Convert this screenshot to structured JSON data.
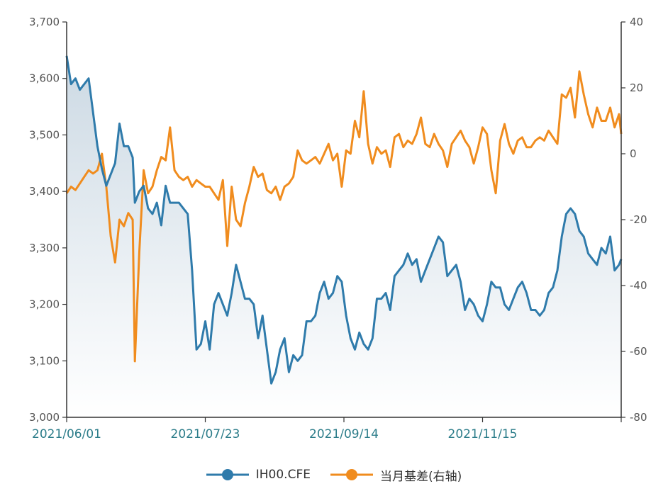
{
  "chart_data": {
    "type": "line",
    "x_ticks": [
      "2021/06/01",
      "2021/07/23",
      "2021/09/14",
      "2021/11/15"
    ],
    "y_left": {
      "min": 3000,
      "max": 3700,
      "ticks": [
        "3,000",
        "3,100",
        "3,200",
        "3,300",
        "3,400",
        "3,500",
        "3,600",
        "3,700"
      ]
    },
    "y_right": {
      "min": -80,
      "max": 40,
      "ticks": [
        "-80",
        "-60",
        "-40",
        "-20",
        "0",
        "20",
        "40"
      ]
    },
    "grid": false,
    "legend_position": "bottom",
    "series": [
      {
        "name": "IH00.CFE",
        "axis": "left",
        "color": "#2f7bab",
        "area": true,
        "points": [
          [
            0,
            3640
          ],
          [
            2,
            3590
          ],
          [
            4,
            3600
          ],
          [
            6,
            3580
          ],
          [
            8,
            3590
          ],
          [
            10,
            3600
          ],
          [
            12,
            3540
          ],
          [
            14,
            3480
          ],
          [
            16,
            3440
          ],
          [
            18,
            3410
          ],
          [
            20,
            3430
          ],
          [
            22,
            3450
          ],
          [
            24,
            3520
          ],
          [
            26,
            3480
          ],
          [
            28,
            3480
          ],
          [
            30,
            3460
          ],
          [
            31,
            3380
          ],
          [
            33,
            3400
          ],
          [
            35,
            3410
          ],
          [
            37,
            3370
          ],
          [
            39,
            3360
          ],
          [
            41,
            3380
          ],
          [
            43,
            3340
          ],
          [
            45,
            3410
          ],
          [
            47,
            3380
          ],
          [
            49,
            3380
          ],
          [
            51,
            3380
          ],
          [
            53,
            3370
          ],
          [
            55,
            3360
          ],
          [
            57,
            3260
          ],
          [
            59,
            3120
          ],
          [
            61,
            3130
          ],
          [
            63,
            3170
          ],
          [
            65,
            3120
          ],
          [
            67,
            3200
          ],
          [
            69,
            3220
          ],
          [
            71,
            3200
          ],
          [
            73,
            3180
          ],
          [
            75,
            3220
          ],
          [
            77,
            3270
          ],
          [
            79,
            3240
          ],
          [
            81,
            3210
          ],
          [
            83,
            3210
          ],
          [
            85,
            3200
          ],
          [
            87,
            3140
          ],
          [
            89,
            3180
          ],
          [
            91,
            3120
          ],
          [
            93,
            3060
          ],
          [
            95,
            3080
          ],
          [
            97,
            3120
          ],
          [
            99,
            3140
          ],
          [
            101,
            3080
          ],
          [
            103,
            3110
          ],
          [
            105,
            3100
          ],
          [
            107,
            3110
          ],
          [
            109,
            3170
          ],
          [
            111,
            3170
          ],
          [
            113,
            3180
          ],
          [
            115,
            3220
          ],
          [
            117,
            3240
          ],
          [
            119,
            3210
          ],
          [
            121,
            3220
          ],
          [
            123,
            3250
          ],
          [
            125,
            3240
          ],
          [
            127,
            3180
          ],
          [
            129,
            3140
          ],
          [
            131,
            3120
          ],
          [
            133,
            3150
          ],
          [
            135,
            3130
          ],
          [
            137,
            3120
          ],
          [
            139,
            3140
          ],
          [
            141,
            3210
          ],
          [
            143,
            3210
          ],
          [
            145,
            3220
          ],
          [
            147,
            3190
          ],
          [
            149,
            3250
          ],
          [
            151,
            3260
          ],
          [
            153,
            3270
          ],
          [
            155,
            3290
          ],
          [
            157,
            3270
          ],
          [
            159,
            3280
          ],
          [
            161,
            3240
          ],
          [
            163,
            3260
          ],
          [
            165,
            3280
          ],
          [
            167,
            3300
          ],
          [
            169,
            3320
          ],
          [
            171,
            3310
          ],
          [
            173,
            3250
          ],
          [
            175,
            3260
          ],
          [
            177,
            3270
          ],
          [
            179,
            3240
          ],
          [
            181,
            3190
          ],
          [
            183,
            3210
          ],
          [
            185,
            3200
          ],
          [
            187,
            3180
          ],
          [
            189,
            3170
          ],
          [
            191,
            3200
          ],
          [
            193,
            3240
          ],
          [
            195,
            3230
          ],
          [
            197,
            3230
          ],
          [
            199,
            3200
          ],
          [
            201,
            3190
          ],
          [
            203,
            3210
          ],
          [
            205,
            3230
          ],
          [
            207,
            3240
          ],
          [
            209,
            3220
          ],
          [
            211,
            3190
          ],
          [
            213,
            3190
          ],
          [
            215,
            3180
          ],
          [
            217,
            3190
          ],
          [
            219,
            3220
          ],
          [
            221,
            3230
          ],
          [
            223,
            3260
          ],
          [
            225,
            3320
          ],
          [
            227,
            3360
          ],
          [
            229,
            3370
          ],
          [
            231,
            3360
          ],
          [
            233,
            3330
          ],
          [
            235,
            3320
          ],
          [
            237,
            3290
          ],
          [
            239,
            3280
          ],
          [
            241,
            3270
          ],
          [
            243,
            3300
          ],
          [
            245,
            3290
          ],
          [
            247,
            3320
          ],
          [
            249,
            3260
          ],
          [
            251,
            3270
          ],
          [
            252,
            3280
          ]
        ]
      },
      {
        "name": "当月基差(右轴)",
        "axis": "right",
        "color": "#f08c1e",
        "area": false,
        "points": [
          [
            0,
            -12
          ],
          [
            2,
            -10
          ],
          [
            4,
            -11
          ],
          [
            6,
            -9
          ],
          [
            8,
            -7
          ],
          [
            10,
            -5
          ],
          [
            12,
            -6
          ],
          [
            14,
            -5
          ],
          [
            16,
            0
          ],
          [
            18,
            -10
          ],
          [
            20,
            -25
          ],
          [
            22,
            -33
          ],
          [
            24,
            -20
          ],
          [
            26,
            -22
          ],
          [
            28,
            -18
          ],
          [
            30,
            -20
          ],
          [
            31,
            -63
          ],
          [
            33,
            -30
          ],
          [
            35,
            -5
          ],
          [
            37,
            -12
          ],
          [
            39,
            -10
          ],
          [
            41,
            -5
          ],
          [
            43,
            -1
          ],
          [
            45,
            -2
          ],
          [
            47,
            8
          ],
          [
            49,
            -5
          ],
          [
            51,
            -7
          ],
          [
            53,
            -8
          ],
          [
            55,
            -7
          ],
          [
            57,
            -10
          ],
          [
            59,
            -8
          ],
          [
            61,
            -9
          ],
          [
            63,
            -10
          ],
          [
            65,
            -10
          ],
          [
            67,
            -12
          ],
          [
            69,
            -14
          ],
          [
            71,
            -8
          ],
          [
            73,
            -28
          ],
          [
            75,
            -10
          ],
          [
            77,
            -20
          ],
          [
            79,
            -22
          ],
          [
            81,
            -15
          ],
          [
            83,
            -10
          ],
          [
            85,
            -4
          ],
          [
            87,
            -7
          ],
          [
            89,
            -6
          ],
          [
            91,
            -11
          ],
          [
            93,
            -12
          ],
          [
            95,
            -10
          ],
          [
            97,
            -14
          ],
          [
            99,
            -10
          ],
          [
            101,
            -9
          ],
          [
            103,
            -7
          ],
          [
            105,
            1
          ],
          [
            107,
            -2
          ],
          [
            109,
            -3
          ],
          [
            111,
            -2
          ],
          [
            113,
            -1
          ],
          [
            115,
            -3
          ],
          [
            117,
            0
          ],
          [
            119,
            3
          ],
          [
            121,
            -2
          ],
          [
            123,
            0
          ],
          [
            125,
            -10
          ],
          [
            127,
            1
          ],
          [
            129,
            0
          ],
          [
            131,
            10
          ],
          [
            133,
            5
          ],
          [
            135,
            19
          ],
          [
            137,
            3
          ],
          [
            139,
            -3
          ],
          [
            141,
            2
          ],
          [
            143,
            0
          ],
          [
            145,
            1
          ],
          [
            147,
            -4
          ],
          [
            149,
            5
          ],
          [
            151,
            6
          ],
          [
            153,
            2
          ],
          [
            155,
            4
          ],
          [
            157,
            3
          ],
          [
            159,
            6
          ],
          [
            161,
            11
          ],
          [
            163,
            3
          ],
          [
            165,
            2
          ],
          [
            167,
            6
          ],
          [
            169,
            3
          ],
          [
            171,
            1
          ],
          [
            173,
            -4
          ],
          [
            175,
            3
          ],
          [
            177,
            5
          ],
          [
            179,
            7
          ],
          [
            181,
            4
          ],
          [
            183,
            2
          ],
          [
            185,
            -3
          ],
          [
            187,
            2
          ],
          [
            189,
            8
          ],
          [
            191,
            6
          ],
          [
            193,
            -5
          ],
          [
            195,
            -12
          ],
          [
            197,
            4
          ],
          [
            199,
            9
          ],
          [
            201,
            3
          ],
          [
            203,
            0
          ],
          [
            205,
            4
          ],
          [
            207,
            5
          ],
          [
            209,
            2
          ],
          [
            211,
            2
          ],
          [
            213,
            4
          ],
          [
            215,
            5
          ],
          [
            217,
            4
          ],
          [
            219,
            7
          ],
          [
            221,
            5
          ],
          [
            223,
            3
          ],
          [
            225,
            18
          ],
          [
            227,
            17
          ],
          [
            229,
            20
          ],
          [
            231,
            11
          ],
          [
            233,
            25
          ],
          [
            235,
            18
          ],
          [
            237,
            12
          ],
          [
            239,
            8
          ],
          [
            241,
            14
          ],
          [
            243,
            10
          ],
          [
            245,
            10
          ],
          [
            247,
            14
          ],
          [
            249,
            8
          ],
          [
            251,
            12
          ],
          [
            252,
            6
          ]
        ]
      }
    ]
  },
  "legend": {
    "series1_label": "IH00.CFE",
    "series2_label": "当月基差(右轴)"
  }
}
